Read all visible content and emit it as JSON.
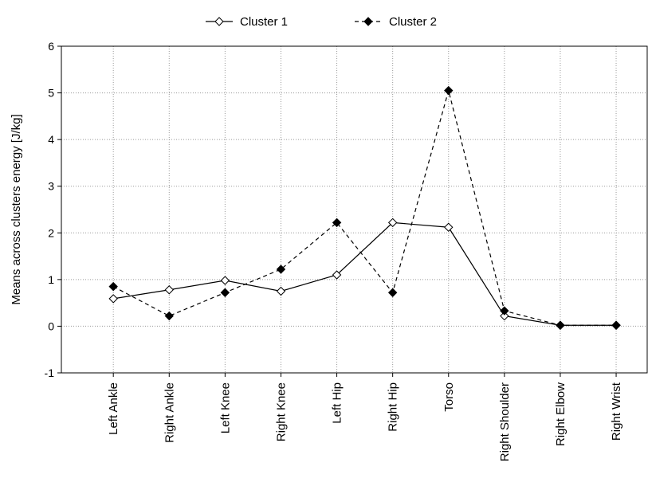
{
  "chart_data": {
    "type": "line",
    "title": "",
    "xlabel": "",
    "ylabel": "Means across clusters energy [J/kg]",
    "ylim": [
      -1,
      6
    ],
    "yticks": [
      -1,
      0,
      1,
      2,
      3,
      4,
      5,
      6
    ],
    "grid": true,
    "legend_position": "top-center",
    "categories": [
      "Left Ankle",
      "Right Ankle",
      "Left Knee",
      "Right Knee",
      "Left Hip",
      "Right Hip",
      "Torso",
      "Right Shoulder",
      "Right Elbow",
      "Right Wrist"
    ],
    "series": [
      {
        "name": "Cluster  1",
        "style": "solid",
        "marker": "open-diamond",
        "color": "#000000",
        "values": [
          0.59,
          0.78,
          0.98,
          0.75,
          1.1,
          2.22,
          2.12,
          0.22,
          0.02,
          0.02
        ]
      },
      {
        "name": "Cluster  2",
        "style": "dashed",
        "marker": "filled-diamond",
        "color": "#000000",
        "values": [
          0.85,
          0.22,
          0.72,
          1.22,
          2.22,
          0.72,
          5.05,
          0.33,
          0.02,
          0.02
        ]
      }
    ]
  }
}
